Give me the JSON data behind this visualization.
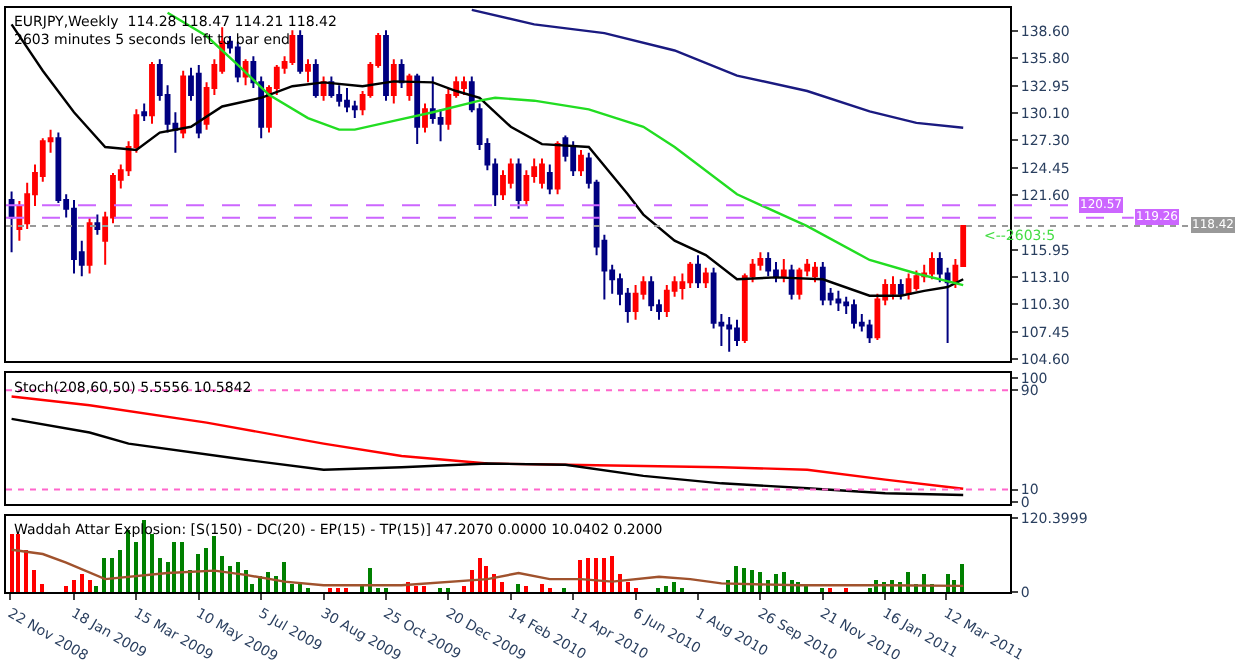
{
  "chart_data": [
    {
      "type": "candlestick",
      "title": "EURJPY,Weekly  114.28 118.47 114.21 118.42",
      "subtitle": "2603 minutes 5 seconds left to bar end",
      "x": [
        "2008-11-23",
        "2008-11-30",
        "2008-12-07",
        "2008-12-14",
        "2008-12-21",
        "2008-12-28",
        "2009-01-04",
        "2009-01-11",
        "2009-01-18",
        "2009-01-25",
        "2009-02-01",
        "2009-02-08",
        "2009-02-15",
        "2009-02-22",
        "2009-03-01",
        "2009-03-08",
        "2009-03-15",
        "2009-03-22",
        "2009-03-29",
        "2009-04-05",
        "2009-04-12",
        "2009-04-19",
        "2009-04-26",
        "2009-05-03",
        "2009-05-10",
        "2009-05-17",
        "2009-05-24",
        "2009-05-31",
        "2009-06-07",
        "2009-06-14",
        "2009-06-21",
        "2009-06-28",
        "2009-07-05",
        "2009-07-12",
        "2009-07-19",
        "2009-07-26",
        "2009-08-02",
        "2009-08-09",
        "2009-08-16",
        "2009-08-23",
        "2009-08-30",
        "2009-09-06",
        "2009-09-13",
        "2009-09-20",
        "2009-09-27",
        "2009-10-04",
        "2009-10-11",
        "2009-10-18",
        "2009-10-25",
        "2009-11-01",
        "2009-11-08",
        "2009-11-15",
        "2009-11-22",
        "2009-11-29",
        "2009-12-06",
        "2009-12-13",
        "2009-12-20",
        "2009-12-27",
        "2010-01-03",
        "2010-01-10",
        "2010-01-17",
        "2010-01-24",
        "2010-01-31",
        "2010-02-07",
        "2010-02-14",
        "2010-02-21",
        "2010-02-28",
        "2010-03-07",
        "2010-03-14",
        "2010-03-21",
        "2010-03-28",
        "2010-04-04",
        "2010-04-11",
        "2010-04-18",
        "2010-04-25",
        "2010-05-02",
        "2010-05-09",
        "2010-05-16",
        "2010-05-23",
        "2010-05-30",
        "2010-06-06",
        "2010-06-13",
        "2010-06-20",
        "2010-06-27",
        "2010-07-04",
        "2010-07-11",
        "2010-07-18",
        "2010-07-25",
        "2010-08-01",
        "2010-08-08",
        "2010-08-15",
        "2010-08-22",
        "2010-08-29",
        "2010-09-05",
        "2010-09-12",
        "2010-09-19",
        "2010-09-26",
        "2010-10-03",
        "2010-10-10",
        "2010-10-17",
        "2010-10-24",
        "2010-10-31",
        "2010-11-07",
        "2010-11-14",
        "2010-11-21",
        "2010-11-28",
        "2010-12-05",
        "2010-12-12",
        "2010-12-19",
        "2010-12-26",
        "2011-01-02",
        "2011-01-09",
        "2011-01-16",
        "2011-01-23",
        "2011-01-30",
        "2011-02-06",
        "2011-02-13",
        "2011-02-20",
        "2011-02-27",
        "2011-03-06",
        "2011-03-13",
        "2011-03-20",
        "2011-03-27"
      ],
      "ohlc": [
        [
          121.1,
          122.0,
          115.7,
          119.3
        ],
        [
          118.1,
          121.0,
          116.9,
          120.5
        ],
        [
          118.7,
          122.9,
          118.1,
          121.7
        ],
        [
          121.7,
          124.8,
          120.5,
          123.9
        ],
        [
          123.6,
          127.5,
          123.0,
          127.2
        ],
        [
          127.2,
          128.4,
          126.0,
          127.5
        ],
        [
          127.5,
          128.1,
          120.8,
          121.1
        ],
        [
          121.1,
          121.7,
          119.3,
          120.2
        ],
        [
          120.2,
          121.1,
          113.5,
          115.0
        ],
        [
          115.7,
          116.9,
          113.2,
          114.4
        ],
        [
          114.4,
          119.3,
          113.5,
          118.7
        ],
        [
          118.7,
          119.6,
          117.5,
          118.1
        ],
        [
          116.9,
          119.9,
          114.4,
          119.3
        ],
        [
          119.3,
          123.9,
          118.7,
          123.6
        ],
        [
          123.2,
          124.8,
          122.3,
          124.2
        ],
        [
          124.2,
          127.2,
          123.6,
          126.6
        ],
        [
          126.6,
          130.5,
          126.0,
          129.9
        ],
        [
          130.2,
          131.1,
          129.3,
          129.9
        ],
        [
          129.9,
          135.4,
          129.0,
          135.1
        ],
        [
          135.1,
          135.7,
          131.4,
          132.0
        ],
        [
          132.0,
          133.0,
          128.1,
          129.0
        ],
        [
          129.0,
          130.2,
          126.0,
          128.4
        ],
        [
          128.1,
          134.5,
          127.5,
          133.9
        ],
        [
          133.9,
          134.8,
          131.4,
          132.0
        ],
        [
          134.2,
          135.1,
          127.5,
          128.1
        ],
        [
          129.0,
          133.3,
          128.4,
          132.7
        ],
        [
          132.7,
          135.7,
          132.0,
          135.1
        ],
        [
          134.5,
          139.0,
          134.2,
          137.5
        ],
        [
          137.5,
          138.1,
          136.3,
          136.9
        ],
        [
          136.9,
          137.5,
          133.3,
          133.9
        ],
        [
          133.9,
          135.7,
          133.0,
          135.4
        ],
        [
          135.4,
          136.0,
          132.7,
          133.3
        ],
        [
          133.3,
          133.9,
          127.5,
          128.7
        ],
        [
          128.7,
          133.0,
          128.1,
          132.7
        ],
        [
          132.7,
          135.1,
          132.0,
          134.8
        ],
        [
          134.8,
          136.0,
          134.2,
          135.4
        ],
        [
          135.4,
          138.7,
          135.1,
          138.1
        ],
        [
          138.1,
          138.7,
          134.2,
          134.5
        ],
        [
          134.5,
          135.7,
          133.3,
          135.1
        ],
        [
          135.1,
          135.7,
          131.7,
          132.0
        ],
        [
          132.0,
          133.9,
          131.4,
          133.3
        ],
        [
          133.3,
          133.9,
          131.7,
          132.0
        ],
        [
          132.0,
          133.0,
          130.8,
          131.4
        ],
        [
          131.4,
          132.7,
          130.2,
          130.8
        ],
        [
          130.8,
          131.4,
          129.6,
          130.5
        ],
        [
          130.5,
          132.4,
          129.9,
          132.0
        ],
        [
          132.0,
          135.4,
          131.7,
          135.1
        ],
        [
          135.1,
          138.4,
          134.8,
          138.1
        ],
        [
          138.1,
          138.7,
          131.4,
          132.0
        ],
        [
          132.0,
          135.7,
          131.1,
          135.1
        ],
        [
          135.1,
          135.7,
          132.7,
          133.3
        ],
        [
          132.0,
          134.2,
          131.4,
          133.9
        ],
        [
          133.9,
          134.2,
          126.9,
          128.7
        ],
        [
          128.7,
          131.1,
          128.1,
          130.5
        ],
        [
          130.5,
          133.9,
          129.0,
          129.6
        ],
        [
          129.6,
          130.5,
          127.2,
          129.0
        ],
        [
          129.0,
          132.7,
          128.4,
          132.0
        ],
        [
          132.0,
          133.9,
          131.7,
          133.3
        ],
        [
          132.7,
          133.9,
          132.0,
          133.3
        ],
        [
          133.3,
          133.9,
          130.2,
          130.5
        ],
        [
          130.5,
          131.1,
          126.3,
          126.9
        ],
        [
          126.9,
          127.5,
          124.2,
          124.8
        ],
        [
          124.8,
          125.4,
          120.5,
          121.7
        ],
        [
          121.7,
          124.2,
          121.1,
          123.6
        ],
        [
          122.9,
          125.4,
          122.3,
          124.8
        ],
        [
          124.8,
          125.4,
          120.2,
          121.1
        ],
        [
          121.1,
          124.2,
          120.5,
          123.6
        ],
        [
          123.6,
          125.4,
          122.9,
          124.5
        ],
        [
          122.9,
          125.4,
          122.3,
          124.8
        ],
        [
          123.9,
          124.8,
          121.7,
          122.3
        ],
        [
          122.3,
          127.2,
          121.7,
          126.9
        ],
        [
          127.5,
          127.8,
          125.1,
          125.7
        ],
        [
          126.6,
          127.2,
          123.6,
          124.2
        ],
        [
          124.2,
          126.3,
          123.6,
          125.7
        ],
        [
          125.4,
          126.0,
          122.3,
          122.9
        ],
        [
          122.9,
          123.2,
          115.4,
          116.3
        ],
        [
          116.9,
          117.5,
          110.8,
          113.8
        ],
        [
          113.8,
          114.4,
          111.4,
          112.9
        ],
        [
          112.9,
          113.5,
          110.2,
          111.4
        ],
        [
          111.4,
          112.0,
          108.4,
          109.6
        ],
        [
          109.6,
          112.3,
          108.7,
          111.4
        ],
        [
          111.4,
          113.2,
          110.8,
          112.6
        ],
        [
          112.6,
          113.2,
          109.6,
          110.2
        ],
        [
          110.2,
          110.8,
          108.7,
          109.6
        ],
        [
          109.6,
          112.3,
          109.0,
          111.7
        ],
        [
          111.7,
          113.2,
          111.1,
          112.6
        ],
        [
          112.0,
          113.5,
          110.8,
          112.6
        ],
        [
          112.6,
          114.7,
          112.0,
          114.4
        ],
        [
          114.4,
          115.4,
          112.0,
          112.6
        ],
        [
          112.6,
          114.1,
          112.0,
          113.5
        ],
        [
          113.5,
          114.1,
          107.8,
          108.4
        ],
        [
          108.4,
          109.3,
          106.0,
          108.1
        ],
        [
          108.1,
          109.0,
          105.4,
          107.8
        ],
        [
          107.8,
          108.7,
          106.0,
          106.6
        ],
        [
          106.6,
          113.5,
          106.3,
          113.2
        ],
        [
          113.2,
          115.0,
          112.6,
          114.4
        ],
        [
          114.4,
          115.7,
          113.8,
          115.0
        ],
        [
          115.0,
          115.7,
          113.2,
          113.8
        ],
        [
          113.8,
          114.7,
          112.6,
          113.2
        ],
        [
          113.2,
          115.0,
          112.6,
          113.8
        ],
        [
          113.8,
          114.4,
          110.8,
          111.4
        ],
        [
          111.4,
          114.1,
          110.8,
          113.8
        ],
        [
          113.8,
          115.0,
          113.2,
          114.4
        ],
        [
          113.2,
          114.7,
          112.6,
          114.1
        ],
        [
          114.1,
          114.7,
          110.2,
          110.8
        ],
        [
          111.4,
          112.0,
          110.2,
          110.8
        ],
        [
          110.8,
          111.7,
          109.6,
          110.5
        ],
        [
          110.5,
          111.1,
          109.3,
          110.2
        ],
        [
          110.2,
          110.8,
          107.8,
          108.4
        ],
        [
          108.4,
          109.3,
          107.5,
          108.1
        ],
        [
          108.1,
          108.7,
          106.3,
          106.9
        ],
        [
          106.9,
          111.4,
          106.6,
          110.8
        ],
        [
          110.8,
          112.9,
          110.2,
          112.3
        ],
        [
          111.4,
          113.2,
          110.8,
          112.3
        ],
        [
          112.3,
          112.9,
          110.8,
          111.4
        ],
        [
          111.4,
          113.5,
          110.8,
          112.9
        ],
        [
          112.0,
          113.8,
          111.7,
          113.2
        ],
        [
          113.2,
          114.4,
          112.6,
          113.5
        ],
        [
          113.5,
          115.7,
          112.9,
          115.0
        ],
        [
          115.0,
          115.7,
          112.6,
          113.5
        ],
        [
          113.5,
          114.1,
          106.3,
          112.6
        ],
        [
          112.6,
          115.0,
          112.0,
          114.3
        ],
        [
          114.28,
          118.47,
          114.21,
          118.42
        ]
      ],
      "colors": [
        "#000080",
        "#ff0000",
        "#ff0000",
        "#ff0000",
        "#ff0000",
        "#ff0000",
        "#000080",
        "#000080",
        "#000080",
        "#000080",
        "#ff0000",
        "#000080",
        "#ff0000",
        "#ff0000",
        "#ff0000",
        "#ff0000",
        "#ff0000",
        "#000080",
        "#ff0000",
        "#000080",
        "#000080",
        "#000080",
        "#ff0000",
        "#000080",
        "#000080",
        "#ff0000",
        "#ff0000",
        "#ff0000",
        "#000080",
        "#000080",
        "#ff0000",
        "#000080",
        "#000080",
        "#ff0000",
        "#ff0000",
        "#ff0000",
        "#ff0000",
        "#000080",
        "#ff0000",
        "#000080",
        "#ff0000",
        "#000080",
        "#000080",
        "#000080",
        "#000080",
        "#ff0000",
        "#ff0000",
        "#ff0000",
        "#000080",
        "#ff0000",
        "#000080",
        "#ff0000",
        "#000080",
        "#ff0000",
        "#000080",
        "#000080",
        "#ff0000",
        "#ff0000",
        "#ff0000",
        "#000080",
        "#000080",
        "#000080",
        "#000080",
        "#ff0000",
        "#ff0000",
        "#000080",
        "#ff0000",
        "#ff0000",
        "#ff0000",
        "#000080",
        "#ff0000",
        "#000080",
        "#000080",
        "#ff0000",
        "#000080",
        "#000080",
        "#000080",
        "#000080",
        "#000080",
        "#000080",
        "#ff0000",
        "#ff0000",
        "#000080",
        "#000080",
        "#ff0000",
        "#ff0000",
        "#ff0000",
        "#ff0000",
        "#000080",
        "#ff0000",
        "#000080",
        "#000080",
        "#000080",
        "#000080",
        "#ff0000",
        "#ff0000",
        "#ff0000",
        "#000080",
        "#000080",
        "#ff0000",
        "#000080",
        "#ff0000",
        "#ff0000",
        "#ff0000",
        "#000080",
        "#000080",
        "#000080",
        "#000080",
        "#000080",
        "#000080",
        "#000080",
        "#ff0000",
        "#ff0000",
        "#ff0000",
        "#000080",
        "#ff0000",
        "#ff0000",
        "#ff0000",
        "#ff0000",
        "#000080",
        "#000080",
        "#ff0000",
        "#ff0000"
      ],
      "series": [
        {
          "type": "line",
          "color": "#000000",
          "x": [
            "2008-11-23",
            "2008-12-21",
            "2009-01-18",
            "2009-02-15",
            "2009-03-15",
            "2009-04-05",
            "2009-05-03",
            "2009-05-31",
            "2009-07-05",
            "2009-08-02",
            "2009-08-30",
            "2009-10-04",
            "2009-11-01",
            "2009-12-06",
            "2009-12-27",
            "2010-01-17",
            "2010-02-14",
            "2010-03-14",
            "2010-04-25",
            "2010-05-30",
            "2010-06-13",
            "2010-07-11",
            "2010-08-08",
            "2010-09-05",
            "2010-10-10",
            "2010-11-21",
            "2011-01-02",
            "2011-01-30",
            "2011-02-20",
            "2011-03-13",
            "2011-03-27"
          ],
          "values": [
            139.3,
            134.5,
            130.2,
            126.6,
            126.3,
            128.1,
            128.7,
            130.8,
            131.7,
            132.9,
            133.3,
            132.9,
            133.4,
            133.3,
            132.4,
            131.7,
            128.7,
            126.9,
            126.6,
            121.7,
            119.6,
            116.9,
            115.4,
            112.9,
            113.1,
            112.9,
            111.2,
            111.2,
            111.7,
            112.1,
            112.9
          ]
        },
        {
          "type": "line",
          "color": "#22dd22",
          "x": [
            "2009-04-12",
            "2009-05-17",
            "2009-06-14",
            "2009-07-12",
            "2009-08-16",
            "2009-09-13",
            "2009-09-27",
            "2009-11-01",
            "2009-12-06",
            "2010-01-17",
            "2010-01-31",
            "2010-03-07",
            "2010-04-25",
            "2010-06-13",
            "2010-07-11",
            "2010-09-05",
            "2010-11-07",
            "2011-01-02",
            "2011-02-13",
            "2011-03-27"
          ],
          "values": [
            140.5,
            138.1,
            135.1,
            132.0,
            129.6,
            128.4,
            128.4,
            129.3,
            130.2,
            131.4,
            131.7,
            131.4,
            130.5,
            128.7,
            126.6,
            121.7,
            118.4,
            114.9,
            113.5,
            112.3
          ]
        },
        {
          "type": "line",
          "color": "#1a1a80",
          "x": [
            "2010-01-10",
            "2010-03-07",
            "2010-05-09",
            "2010-07-11",
            "2010-09-05",
            "2010-11-07",
            "2011-01-02",
            "2011-02-13",
            "2011-03-27"
          ],
          "values": [
            140.8,
            139.3,
            138.4,
            136.6,
            134.0,
            132.4,
            130.3,
            129.1,
            128.6
          ]
        }
      ],
      "xlim": [
        "2008-11-18",
        "2011-05-08"
      ],
      "ylim": [
        104.4,
        141.0
      ],
      "yticks": [
        {
          "value": 138.6,
          "label": "138.60"
        },
        {
          "value": 135.8,
          "label": "135.80"
        },
        {
          "value": 132.95,
          "label": "132.95"
        },
        {
          "value": 130.1,
          "label": "130.10"
        },
        {
          "value": 127.3,
          "label": "127.30"
        },
        {
          "value": 124.45,
          "label": "124.45"
        },
        {
          "value": 121.6,
          "label": "121.60"
        },
        {
          "value": 115.95,
          "label": "115.95"
        },
        {
          "value": 113.1,
          "label": "113.10"
        },
        {
          "value": 110.3,
          "label": "110.30"
        },
        {
          "value": 107.45,
          "label": "107.45"
        },
        {
          "value": 104.6,
          "label": "104.60"
        }
      ],
      "ref_lines": [
        {
          "axis": "y",
          "value": 120.57,
          "label": "120.57",
          "color": "#cc66ff",
          "line_style": "dashed"
        },
        {
          "axis": "y",
          "value": 119.26,
          "label": "119.26",
          "color": "#cc66ff",
          "line_style": "dashed"
        },
        {
          "axis": "y",
          "value": 118.42,
          "label": "118.42",
          "color": "#999999",
          "line_style": "dotted"
        }
      ],
      "annotations": [
        {
          "text": "<--2603:5",
          "x": "2011-03-27",
          "y": 117.4
        }
      ],
      "tick_labels": "y"
    },
    {
      "type": "line",
      "title": "Stoch(208,60,50) 5.5556 10.5842",
      "series": [
        {
          "color": "#ff0000",
          "x": [
            "2008-11-23",
            "2009-02-01",
            "2009-05-17",
            "2009-08-30",
            "2009-11-08",
            "2010-01-24",
            "2010-04-04",
            "2010-08-22",
            "2010-11-07",
            "2011-01-16",
            "2011-03-27"
          ],
          "values": [
            85,
            78,
            64,
            47,
            37,
            31,
            30,
            28,
            26,
            18,
            10.5842
          ]
        },
        {
          "color": "#000000",
          "x": [
            "2008-11-23",
            "2009-02-01",
            "2009-03-08",
            "2009-06-21",
            "2009-08-30",
            "2009-11-08",
            "2010-01-24",
            "2010-04-04",
            "2010-06-13",
            "2010-08-22",
            "2010-11-07",
            "2011-01-16",
            "2011-03-27"
          ],
          "values": [
            67,
            56,
            47,
            34,
            26,
            28,
            31,
            30,
            21,
            15,
            11,
            7,
            5.5556
          ]
        }
      ],
      "xlim": [
        "2008-11-18",
        "2011-05-08"
      ],
      "ylim": [
        -2,
        104
      ],
      "yticks": [
        100,
        90,
        10,
        0
      ],
      "ref_lines": [
        {
          "axis": "y",
          "value": 90,
          "color": "#ff66cc",
          "line_style": "dotted"
        },
        {
          "axis": "y",
          "value": 10,
          "color": "#ff66cc",
          "line_style": "dotted"
        }
      ],
      "tick_labels": "y"
    },
    {
      "type": "bar",
      "title": "Waddah Attar Explosion: [S(150) - DC(20) - EP(15) - TP(15)] 47.2070 0.0000 10.0402 0.2000",
      "x": [
        "2008-11-23",
        "2008-11-30",
        "2008-12-07",
        "2008-12-14",
        "2008-12-21",
        "2008-12-28",
        "2009-01-04",
        "2009-01-11",
        "2009-01-18",
        "2009-01-25",
        "2009-02-01",
        "2009-02-08",
        "2009-02-15",
        "2009-02-22",
        "2009-03-01",
        "2009-03-08",
        "2009-03-15",
        "2009-03-22",
        "2009-03-29",
        "2009-04-05",
        "2009-04-12",
        "2009-04-19",
        "2009-04-26",
        "2009-05-03",
        "2009-05-10",
        "2009-05-17",
        "2009-05-24",
        "2009-05-31",
        "2009-06-07",
        "2009-06-14",
        "2009-06-21",
        "2009-06-28",
        "2009-07-05",
        "2009-07-12",
        "2009-07-19",
        "2009-07-26",
        "2009-08-02",
        "2009-08-09",
        "2009-08-16",
        "2009-08-23",
        "2009-08-30",
        "2009-09-06",
        "2009-09-13",
        "2009-09-20",
        "2009-09-27",
        "2009-10-04",
        "2009-10-11",
        "2009-10-18",
        "2009-10-25",
        "2009-11-01",
        "2009-11-08",
        "2009-11-15",
        "2009-11-22",
        "2009-11-29",
        "2009-12-06",
        "2009-12-13",
        "2009-12-20",
        "2009-12-27",
        "2010-01-03",
        "2010-01-10",
        "2010-01-17",
        "2010-01-24",
        "2010-01-31",
        "2010-02-07",
        "2010-02-14",
        "2010-02-21",
        "2010-02-28",
        "2010-03-07",
        "2010-03-14",
        "2010-03-21",
        "2010-03-28",
        "2010-04-04",
        "2010-04-11",
        "2010-04-18",
        "2010-04-25",
        "2010-05-02",
        "2010-05-09",
        "2010-05-16",
        "2010-05-23",
        "2010-05-30",
        "2010-06-06",
        "2010-06-13",
        "2010-06-20",
        "2010-06-27",
        "2010-07-04",
        "2010-07-11",
        "2010-07-18",
        "2010-07-25",
        "2010-08-01",
        "2010-08-08",
        "2010-08-15",
        "2010-08-22",
        "2010-08-29",
        "2010-09-05",
        "2010-09-12",
        "2010-09-19",
        "2010-09-26",
        "2010-10-03",
        "2010-10-10",
        "2010-10-17",
        "2010-10-24",
        "2010-10-31",
        "2010-11-07",
        "2010-11-14",
        "2010-11-21",
        "2010-11-28",
        "2010-12-05",
        "2010-12-12",
        "2010-12-19",
        "2010-12-26",
        "2011-01-02",
        "2011-01-09",
        "2011-01-16",
        "2011-01-23",
        "2011-01-30",
        "2011-02-06",
        "2011-02-13",
        "2011-02-20",
        "2011-02-27",
        "2011-03-06",
        "2011-03-13",
        "2011-03-20",
        "2011-03-27"
      ],
      "series": [
        {
          "values": [
            94,
            94,
            69,
            35,
            14,
            null,
            null,
            10,
            20,
            28,
            20,
            10,
            55,
            55,
            69,
            100,
            83,
            118,
            94,
            55,
            48,
            80,
            83,
            35,
            62,
            72,
            90,
            59,
            41,
            48,
            35,
            14,
            25,
            31,
            25,
            48,
            14,
            14,
            7,
            null,
            null,
            7,
            7,
            7,
            null,
            14,
            39,
            7,
            7,
            null,
            null,
            17,
            10,
            10,
            null,
            7,
            4,
            null,
            10,
            35,
            55,
            41,
            28,
            17,
            null,
            14,
            10,
            null,
            14,
            7,
            null,
            7,
            null,
            52,
            55,
            55,
            55,
            58,
            28,
            17,
            7,
            null,
            null,
            7,
            10,
            17,
            7,
            null,
            null,
            null,
            null,
            null,
            21,
            41,
            38,
            35,
            31,
            21,
            28,
            31,
            21,
            17,
            10,
            null,
            4,
            7,
            null,
            7,
            null,
            null,
            7,
            21,
            17,
            21,
            17,
            31,
            14,
            28,
            14,
            null,
            28,
            21,
            47.207
          ],
          "colors": [
            "#ff0000",
            "#ff0000",
            "#ff0000",
            "#ff0000",
            "#ff0000",
            null,
            null,
            "#ff0000",
            "#ff0000",
            "#ff0000",
            "#ff0000",
            "#008000",
            "#008000",
            "#008000",
            "#008000",
            "#008000",
            "#008000",
            "#008000",
            "#008000",
            "#008000",
            "#008000",
            "#008000",
            "#008000",
            "#008000",
            "#008000",
            "#008000",
            "#008000",
            "#008000",
            "#008000",
            "#008000",
            "#008000",
            "#008000",
            "#008000",
            "#008000",
            "#008000",
            "#008000",
            "#008000",
            "#008000",
            "#008000",
            null,
            null,
            "#ff0000",
            "#ff0000",
            "#ff0000",
            null,
            "#008000",
            "#008000",
            "#008000",
            "#008000",
            null,
            null,
            "#ff0000",
            "#ff0000",
            "#ff0000",
            null,
            "#008000",
            "#008000",
            null,
            "#ff0000",
            "#ff0000",
            "#ff0000",
            "#ff0000",
            "#ff0000",
            "#ff0000",
            null,
            "#008000",
            "#ff0000",
            null,
            "#ff0000",
            "#ff0000",
            null,
            "#008000",
            null,
            "#ff0000",
            "#ff0000",
            "#ff0000",
            "#ff0000",
            "#ff0000",
            "#ff0000",
            "#ff0000",
            "#ff0000",
            null,
            null,
            "#008000",
            "#008000",
            "#008000",
            "#008000",
            null,
            null,
            null,
            null,
            null,
            "#008000",
            "#008000",
            "#008000",
            "#008000",
            "#008000",
            "#008000",
            "#008000",
            "#008000",
            "#008000",
            "#008000",
            "#008000",
            null,
            "#008000",
            "#ff0000",
            null,
            "#ff0000",
            null,
            null,
            "#008000",
            "#008000",
            "#008000",
            "#008000",
            "#008000",
            "#008000",
            "#008000",
            "#008000",
            "#008000",
            null,
            "#008000",
            "#008000",
            "#008000"
          ]
        },
        {
          "type": "line",
          "color": "#a0522d",
          "x": [
            "2008-11-23",
            "2008-12-21",
            "2009-01-11",
            "2009-02-15",
            "2009-04-12",
            "2009-05-24",
            "2009-06-21",
            "2009-07-26",
            "2009-08-30",
            "2009-11-08",
            "2010-01-24",
            "2010-02-21",
            "2010-03-21",
            "2010-04-18",
            "2010-05-16",
            "2010-06-27",
            "2010-07-25",
            "2010-08-22",
            "2010-10-31",
            "2011-01-16",
            "2011-03-27"
          ],
          "values": [
            69,
            62,
            48,
            21,
            31,
            35,
            28,
            17,
            11,
            11,
            21,
            31,
            21,
            21,
            17,
            25,
            21,
            14,
            11,
            11,
            10.0402
          ]
        }
      ],
      "xlim": [
        "2008-11-18",
        "2011-05-08"
      ],
      "ylim": [
        0,
        124
      ],
      "yticks": [
        0,
        120.3999
      ],
      "xticks": [
        {
          "value": "2008-11-22",
          "label": "22 Nov 2008"
        },
        {
          "value": "2009-01-18",
          "label": "18 Jan 2009"
        },
        {
          "value": "2009-03-15",
          "label": "15 Mar 2009"
        },
        {
          "value": "2009-05-10",
          "label": "10 May 2009"
        },
        {
          "value": "2009-07-05",
          "label": "5 Jul 2009"
        },
        {
          "value": "2009-08-30",
          "label": "30 Aug 2009"
        },
        {
          "value": "2009-10-25",
          "label": "25 Oct 2009"
        },
        {
          "value": "2009-12-20",
          "label": "20 Dec 2009"
        },
        {
          "value": "2010-02-14",
          "label": "14 Feb 2010"
        },
        {
          "value": "2010-04-11",
          "label": "11 Apr 2010"
        },
        {
          "value": "2010-06-06",
          "label": "6 Jun 2010"
        },
        {
          "value": "2010-08-01",
          "label": "1 Aug 2010"
        },
        {
          "value": "2010-09-26",
          "label": "26 Sep 2010"
        },
        {
          "value": "2010-11-21",
          "label": "21 Nov 2010"
        },
        {
          "value": "2011-01-16",
          "label": "16 Jan 2011"
        },
        {
          "value": "2011-03-12",
          "label": "12 Mar 2011"
        }
      ]
    }
  ]
}
